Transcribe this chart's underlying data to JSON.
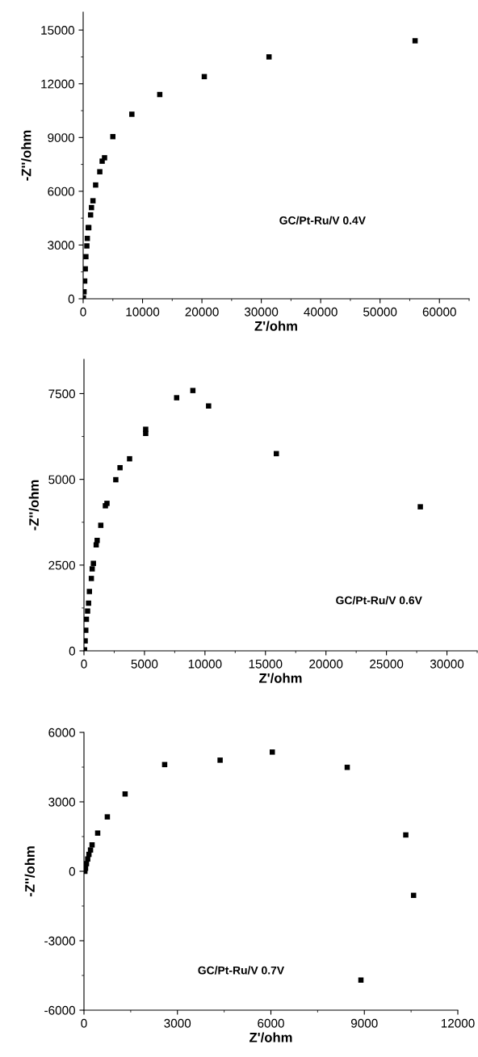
{
  "chart_data": [
    {
      "type": "scatter",
      "xlabel": "Z'/ohm",
      "ylabel": "-Z''/ohm",
      "xlim": [
        0,
        65000
      ],
      "ylim": [
        0,
        16000
      ],
      "xticks": [
        0,
        10000,
        20000,
        30000,
        40000,
        50000,
        60000
      ],
      "yticks": [
        0,
        3000,
        6000,
        9000,
        12000,
        15000
      ],
      "marker": "square",
      "grid": false,
      "legend": false,
      "series": [
        {
          "name": "GC/Pt-Ru/V 0.4V",
          "color": "#000000",
          "x": [
            50,
            150,
            260,
            360,
            460,
            620,
            700,
            850,
            950,
            1250,
            1400,
            1650,
            2100,
            2800,
            3200,
            3600,
            5000,
            8200,
            12900,
            20400,
            31300,
            55900
          ],
          "values": [
            50,
            390,
            990,
            1670,
            2350,
            2950,
            3370,
            3970,
            3970,
            4680,
            5090,
            5470,
            6350,
            7090,
            7680,
            7870,
            9050,
            10300,
            11400,
            12400,
            13500,
            14400
          ]
        }
      ]
    },
    {
      "type": "scatter",
      "xlabel": "Z'/ohm",
      "ylabel": "-Z''/ohm",
      "xlim": [
        0,
        32500
      ],
      "ylim": [
        0,
        8500
      ],
      "xticks": [
        0,
        5000,
        10000,
        15000,
        20000,
        25000,
        30000
      ],
      "yticks": [
        0,
        2500,
        5000,
        7500
      ],
      "marker": "square",
      "grid": false,
      "legend": false,
      "series": [
        {
          "name": "GC/Pt-Ru/V 0.6V",
          "color": "#000000",
          "x": [
            50,
            100,
            150,
            200,
            300,
            380,
            450,
            610,
            680,
            780,
            1010,
            1090,
            1390,
            1770,
            1900,
            2630,
            2980,
            3770,
            5100,
            5100,
            7660,
            9000,
            10300,
            15900,
            27800
          ],
          "values": [
            30,
            290,
            600,
            920,
            1160,
            1390,
            1730,
            2110,
            2390,
            2550,
            3090,
            3220,
            3660,
            4230,
            4300,
            4990,
            5340,
            5600,
            6340,
            6460,
            7380,
            7590,
            7140,
            5750,
            4200
          ]
        }
      ]
    },
    {
      "type": "scatter",
      "xlabel": "Z'/ohm",
      "ylabel": "-Z''/ohm",
      "xlim": [
        0,
        12000
      ],
      "ylim": [
        -6000,
        6000
      ],
      "xticks": [
        0,
        3000,
        6000,
        9000,
        12000
      ],
      "yticks": [
        {
          "value": -6000,
          "label": "-6000"
        },
        {
          "value": -3000,
          "label": "-3000"
        },
        0,
        3000,
        6000
      ],
      "marker": "square",
      "grid": false,
      "legend": false,
      "series": [
        {
          "name": "GC/Pt-Ru/V 0.7V",
          "color": "#000000",
          "x": [
            30,
            50,
            80,
            120,
            160,
            210,
            260,
            440,
            750,
            1320,
            2590,
            4370,
            6045,
            8450,
            10330,
            10580,
            8890
          ],
          "values": [
            0,
            130,
            330,
            530,
            730,
            920,
            1140,
            1650,
            2350,
            3340,
            4610,
            4800,
            5150,
            4490,
            1570,
            -1040,
            -4700
          ]
        }
      ]
    }
  ]
}
